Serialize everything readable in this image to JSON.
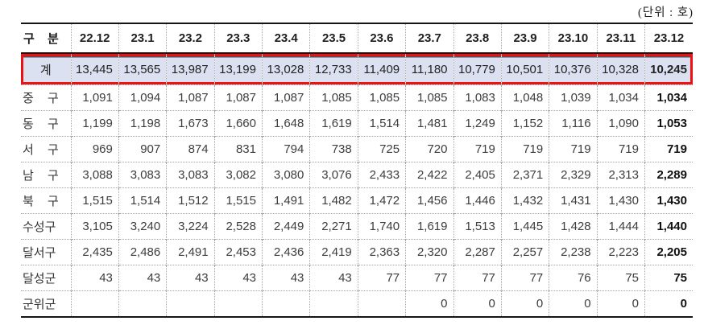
{
  "unit_label": "(단위 : 호)",
  "colors": {
    "total_row_bg": "#dce1f1",
    "total_row_border": "#ee1111",
    "grid_line": "#a3a3a3",
    "solid_line": "#151515",
    "text": "#3d3d3d",
    "bold_text": "#111111"
  },
  "table": {
    "header": {
      "category_label": "구 분",
      "months": [
        "22.12",
        "23.1",
        "23.2",
        "23.3",
        "23.4",
        "23.5",
        "23.6",
        "23.7",
        "23.8",
        "23.9",
        "23.10",
        "23.11",
        "23.12"
      ]
    },
    "total_row": {
      "label": "계",
      "values": [
        "13,445",
        "13,565",
        "13,987",
        "13,199",
        "13,028",
        "12,733",
        "11,409",
        "11,180",
        "10,779",
        "10,501",
        "10,376",
        "10,328",
        "10,245"
      ]
    },
    "rows": [
      {
        "label": "중 구",
        "values": [
          "1,091",
          "1,094",
          "1,087",
          "1,087",
          "1,087",
          "1,085",
          "1,085",
          "1,085",
          "1,083",
          "1,048",
          "1,039",
          "1,034",
          "1,034"
        ]
      },
      {
        "label": "동 구",
        "values": [
          "1,199",
          "1,198",
          "1,673",
          "1,660",
          "1,648",
          "1,619",
          "1,514",
          "1,481",
          "1,249",
          "1,152",
          "1,116",
          "1,090",
          "1,053"
        ]
      },
      {
        "label": "서 구",
        "values": [
          "969",
          "907",
          "874",
          "831",
          "794",
          "738",
          "725",
          "720",
          "719",
          "719",
          "719",
          "719",
          "719"
        ]
      },
      {
        "label": "남 구",
        "values": [
          "3,088",
          "3,083",
          "3,083",
          "3,082",
          "3,080",
          "3,076",
          "2,433",
          "2,422",
          "2,405",
          "2,371",
          "2,329",
          "2,313",
          "2,289"
        ]
      },
      {
        "label": "북 구",
        "values": [
          "1,515",
          "1,514",
          "1,512",
          "1,515",
          "1,491",
          "1,482",
          "1,472",
          "1,456",
          "1,446",
          "1,432",
          "1,431",
          "1,430",
          "1,430"
        ]
      },
      {
        "label": "수성구",
        "values": [
          "3,105",
          "3,240",
          "3,224",
          "2,528",
          "2,449",
          "2,271",
          "1,740",
          "1,619",
          "1,513",
          "1,445",
          "1,428",
          "1,444",
          "1,440"
        ]
      },
      {
        "label": "달서구",
        "values": [
          "2,435",
          "2,486",
          "2,491",
          "2,453",
          "2,436",
          "2,419",
          "2,363",
          "2,320",
          "2,287",
          "2,257",
          "2,238",
          "2,223",
          "2,205"
        ]
      },
      {
        "label": "달성군",
        "values": [
          "43",
          "43",
          "43",
          "43",
          "43",
          "43",
          "77",
          "77",
          "77",
          "77",
          "76",
          "75",
          "75"
        ]
      },
      {
        "label": "군위군",
        "values": [
          "",
          "",
          "",
          "",
          "",
          "",
          "",
          "0",
          "0",
          "0",
          "0",
          "0",
          "0"
        ]
      }
    ]
  },
  "chart_data": {
    "type": "table",
    "title": "구별 월별 현황 (단위 : 호)",
    "categories": [
      "22.12",
      "23.1",
      "23.2",
      "23.3",
      "23.4",
      "23.5",
      "23.6",
      "23.7",
      "23.8",
      "23.9",
      "23.10",
      "23.11",
      "23.12"
    ],
    "series": [
      {
        "name": "계",
        "values": [
          13445,
          13565,
          13987,
          13199,
          13028,
          12733,
          11409,
          11180,
          10779,
          10501,
          10376,
          10328,
          10245
        ]
      },
      {
        "name": "중 구",
        "values": [
          1091,
          1094,
          1087,
          1087,
          1087,
          1085,
          1085,
          1085,
          1083,
          1048,
          1039,
          1034,
          1034
        ]
      },
      {
        "name": "동 구",
        "values": [
          1199,
          1198,
          1673,
          1660,
          1648,
          1619,
          1514,
          1481,
          1249,
          1152,
          1116,
          1090,
          1053
        ]
      },
      {
        "name": "서 구",
        "values": [
          969,
          907,
          874,
          831,
          794,
          738,
          725,
          720,
          719,
          719,
          719,
          719,
          719
        ]
      },
      {
        "name": "남 구",
        "values": [
          3088,
          3083,
          3083,
          3082,
          3080,
          3076,
          2433,
          2422,
          2405,
          2371,
          2329,
          2313,
          2289
        ]
      },
      {
        "name": "북 구",
        "values": [
          1515,
          1514,
          1512,
          1515,
          1491,
          1482,
          1472,
          1456,
          1446,
          1432,
          1431,
          1430,
          1430
        ]
      },
      {
        "name": "수성구",
        "values": [
          3105,
          3240,
          3224,
          2528,
          2449,
          2271,
          1740,
          1619,
          1513,
          1445,
          1428,
          1444,
          1440
        ]
      },
      {
        "name": "달서구",
        "values": [
          2435,
          2486,
          2491,
          2453,
          2436,
          2419,
          2363,
          2320,
          2287,
          2257,
          2238,
          2223,
          2205
        ]
      },
      {
        "name": "달성군",
        "values": [
          43,
          43,
          43,
          43,
          43,
          43,
          77,
          77,
          77,
          77,
          76,
          75,
          75
        ]
      },
      {
        "name": "군위군",
        "values": [
          null,
          null,
          null,
          null,
          null,
          null,
          null,
          0,
          0,
          0,
          0,
          0,
          0
        ]
      }
    ]
  }
}
